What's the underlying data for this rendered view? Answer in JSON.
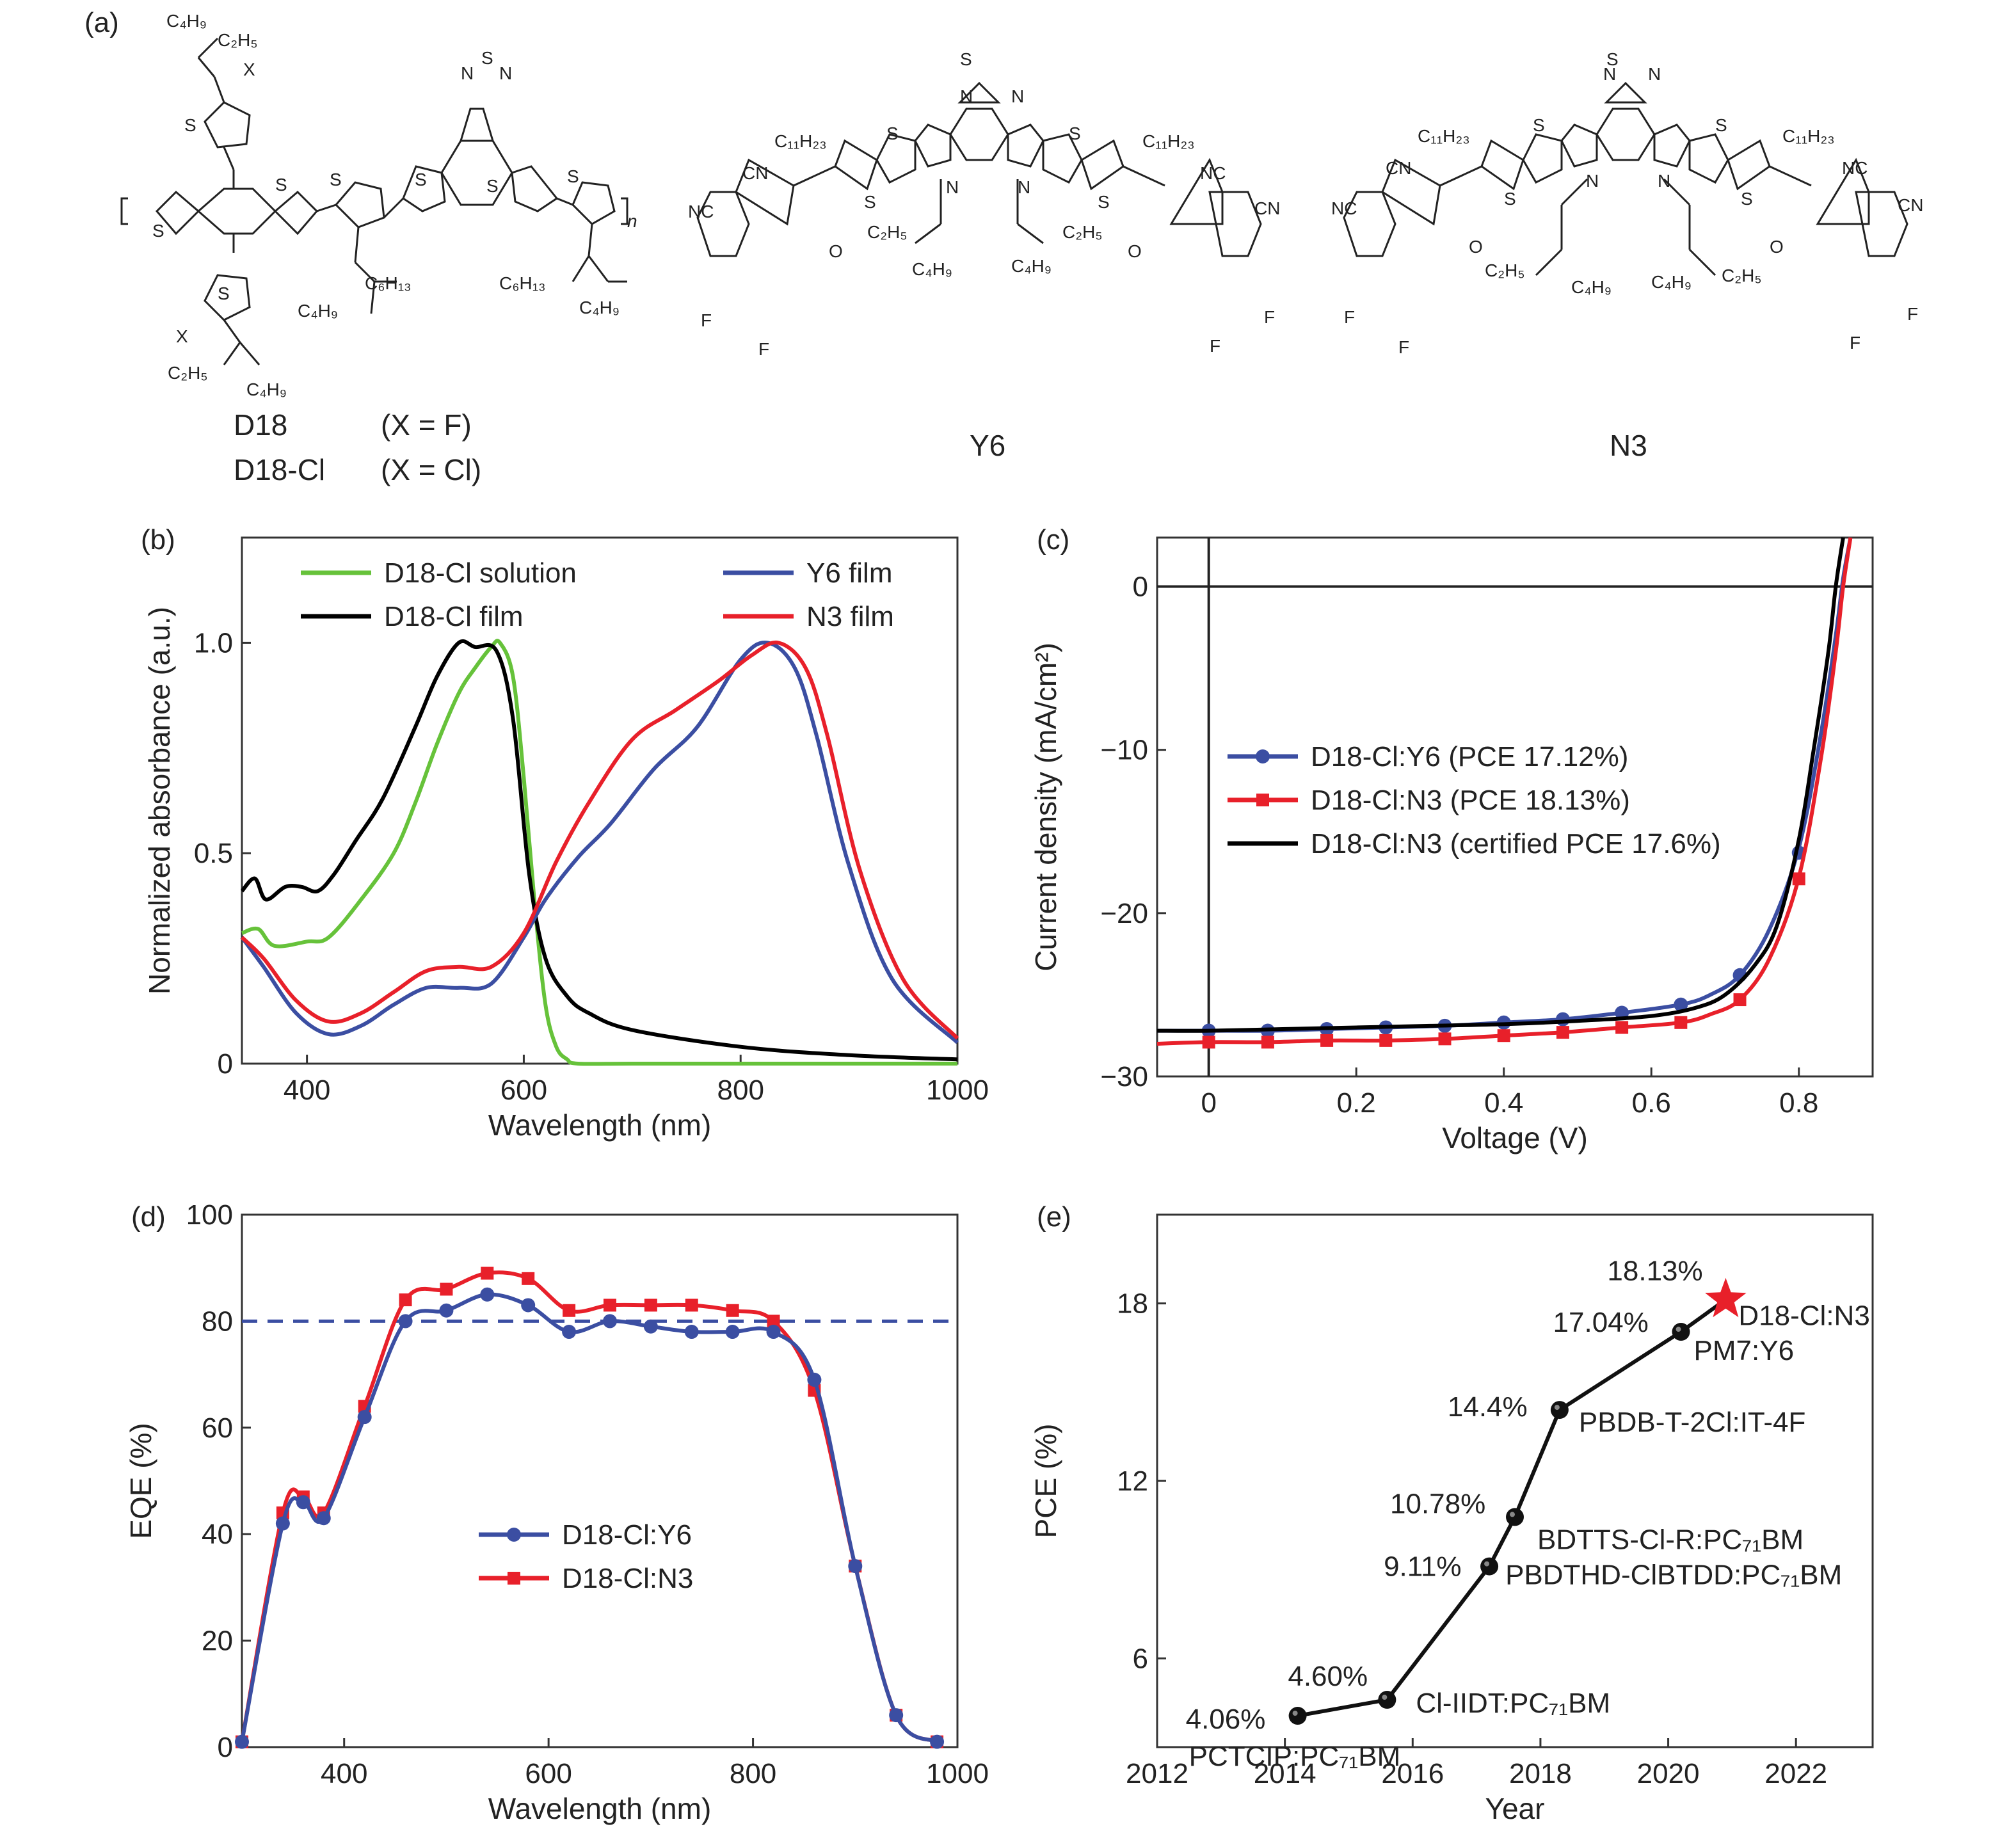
{
  "colors": {
    "green": "#66c23a",
    "black": "#000000",
    "blue": "#3b4ea2",
    "red": "#e8202a",
    "dashed": "#3b4ea2",
    "highlight": "#d8285a"
  },
  "panel_a": {
    "label": "(a)",
    "molecules": [
      {
        "name": "D18",
        "note": "(X = F)"
      },
      {
        "name": "D18-Cl",
        "note": "(X = Cl)"
      },
      {
        "name": "Y6"
      },
      {
        "name": "N3"
      }
    ],
    "atoms": {
      "S": "S",
      "N": "N",
      "F": "F",
      "X": "X",
      "O": "O",
      "NC": "NC",
      "CN": "CN",
      "C4H9": "C₄H₉",
      "C2H5": "C₂H₅",
      "C6H13": "C₆H₁₃",
      "C11H23": "C₁₁H₂₃",
      "n": "n"
    }
  },
  "chart_data": [
    {
      "panel": "(b)",
      "type": "line",
      "xlabel": "Wavelength (nm)",
      "ylabel": "Normalized absorbance (a.u.)",
      "xlim": [
        340,
        1000
      ],
      "ylim": [
        0,
        1.25
      ],
      "xticks": [
        400,
        600,
        800,
        1000
      ],
      "yticks": [
        0,
        0.5,
        1.0
      ],
      "ytick_labels": [
        "0",
        "0.5",
        "1.0"
      ],
      "legend": "top",
      "series": [
        {
          "name": "D18-Cl solution",
          "color": "#66c23a",
          "x": [
            340,
            355,
            370,
            400,
            420,
            450,
            480,
            500,
            520,
            540,
            555,
            570,
            578,
            590,
            600,
            610,
            620,
            630,
            640,
            650,
            700,
            800,
            900,
            1000
          ],
          "y": [
            0.31,
            0.32,
            0.28,
            0.29,
            0.3,
            0.39,
            0.5,
            0.62,
            0.76,
            0.88,
            0.94,
            0.99,
            1.0,
            0.92,
            0.68,
            0.38,
            0.14,
            0.04,
            0.01,
            0.0,
            0.0,
            0.0,
            0.0,
            0.0
          ]
        },
        {
          "name": "D18-Cl film",
          "color": "#000000",
          "x": [
            340,
            352,
            362,
            380,
            395,
            410,
            425,
            445,
            470,
            500,
            520,
            540,
            555,
            575,
            590,
            605,
            620,
            640,
            660,
            700,
            800,
            900,
            1000
          ],
          "y": [
            0.41,
            0.44,
            0.39,
            0.42,
            0.42,
            0.41,
            0.45,
            0.53,
            0.63,
            0.8,
            0.92,
            1.0,
            0.99,
            0.98,
            0.82,
            0.45,
            0.25,
            0.16,
            0.12,
            0.08,
            0.04,
            0.02,
            0.01
          ]
        },
        {
          "name": "Y6 film",
          "color": "#3b4ea2",
          "x": [
            340,
            360,
            390,
            420,
            450,
            480,
            510,
            540,
            570,
            600,
            620,
            650,
            680,
            720,
            760,
            800,
            825,
            850,
            870,
            900,
            940,
            1000
          ],
          "y": [
            0.3,
            0.23,
            0.12,
            0.07,
            0.09,
            0.14,
            0.18,
            0.18,
            0.19,
            0.3,
            0.39,
            0.49,
            0.57,
            0.7,
            0.8,
            0.96,
            1.0,
            0.94,
            0.78,
            0.47,
            0.2,
            0.05
          ]
        },
        {
          "name": "N3 film",
          "color": "#e8202a",
          "x": [
            340,
            360,
            390,
            420,
            450,
            480,
            510,
            540,
            570,
            600,
            630,
            660,
            700,
            740,
            780,
            810,
            835,
            860,
            880,
            910,
            950,
            1000
          ],
          "y": [
            0.3,
            0.25,
            0.15,
            0.1,
            0.12,
            0.17,
            0.22,
            0.23,
            0.23,
            0.31,
            0.48,
            0.62,
            0.77,
            0.84,
            0.91,
            0.97,
            1.0,
            0.94,
            0.78,
            0.46,
            0.2,
            0.06
          ]
        }
      ]
    },
    {
      "panel": "(c)",
      "type": "line",
      "xlabel": "Voltage (V)",
      "ylabel": "Current density (mA/cm²)",
      "xlim": [
        -0.07,
        0.9
      ],
      "ylim": [
        -30,
        3
      ],
      "xticks": [
        0,
        0.2,
        0.4,
        0.6,
        0.8
      ],
      "xtick_labels": [
        "0",
        "0.2",
        "0.4",
        "0.6",
        "0.8"
      ],
      "yticks": [
        0,
        -10,
        -20,
        -30
      ],
      "ytick_labels": [
        "0",
        "−10",
        "−20",
        "−30"
      ],
      "legend": "middle-left",
      "series": [
        {
          "name": "D18-Cl:Y6 (PCE 17.12%)",
          "color": "#3b4ea2",
          "marker": "circle",
          "x": [
            -0.07,
            0,
            0.08,
            0.16,
            0.24,
            0.32,
            0.4,
            0.48,
            0.56,
            0.64,
            0.68,
            0.72,
            0.76,
            0.8,
            0.83,
            0.85,
            0.86,
            0.87
          ],
          "y": [
            -27.2,
            -27.2,
            -27.2,
            -27.1,
            -27.0,
            -26.9,
            -26.7,
            -26.5,
            -26.1,
            -25.6,
            -25.0,
            -23.8,
            -21.0,
            -16.0,
            -9.0,
            -3.0,
            0.5,
            3.0
          ],
          "marker_x": [
            0,
            0.08,
            0.16,
            0.24,
            0.32,
            0.4,
            0.48,
            0.56,
            0.64,
            0.72,
            0.8
          ],
          "marker_y": [
            -27.2,
            -27.2,
            -27.1,
            -27.0,
            -26.9,
            -26.7,
            -26.5,
            -26.1,
            -25.6,
            -23.8,
            -16.3
          ]
        },
        {
          "name": "D18-Cl:N3 (PCE 18.13%)",
          "color": "#e8202a",
          "marker": "square",
          "x": [
            -0.07,
            0,
            0.08,
            0.16,
            0.24,
            0.32,
            0.4,
            0.48,
            0.56,
            0.64,
            0.68,
            0.72,
            0.76,
            0.8,
            0.83,
            0.85,
            0.86,
            0.87
          ],
          "y": [
            -28.0,
            -27.9,
            -27.9,
            -27.8,
            -27.8,
            -27.7,
            -27.5,
            -27.3,
            -27.0,
            -26.7,
            -26.2,
            -25.3,
            -22.8,
            -17.8,
            -10.5,
            -4.0,
            0.0,
            3.0
          ],
          "marker_x": [
            0,
            0.08,
            0.16,
            0.24,
            0.32,
            0.4,
            0.48,
            0.56,
            0.64,
            0.72,
            0.8
          ],
          "marker_y": [
            -27.9,
            -27.9,
            -27.8,
            -27.8,
            -27.7,
            -27.5,
            -27.3,
            -27.0,
            -26.7,
            -25.3,
            -17.9
          ]
        },
        {
          "name": "D18-Cl:N3 (certified PCE 17.6%)",
          "color": "#000000",
          "marker": "none",
          "x": [
            -0.07,
            0,
            0.1,
            0.2,
            0.3,
            0.4,
            0.5,
            0.6,
            0.66,
            0.7,
            0.74,
            0.77,
            0.8,
            0.82,
            0.84,
            0.85,
            0.86
          ],
          "y": [
            -27.2,
            -27.2,
            -27.1,
            -27.0,
            -26.9,
            -26.8,
            -26.6,
            -26.3,
            -25.8,
            -25.0,
            -23.2,
            -20.8,
            -15.5,
            -10.0,
            -4.0,
            0.0,
            3.0
          ]
        }
      ]
    },
    {
      "panel": "(d)",
      "type": "line",
      "xlabel": "Wavelength (nm)",
      "ylabel": "EQE (%)",
      "xlim": [
        300,
        1000
      ],
      "ylim": [
        0,
        100
      ],
      "xticks": [
        400,
        600,
        800,
        1000
      ],
      "yticks": [
        0,
        20,
        40,
        60,
        80,
        100
      ],
      "reference_line": 80,
      "legend": "bottom-left",
      "series": [
        {
          "name": "D18-Cl:Y6",
          "color": "#3b4ea2",
          "marker": "circle",
          "x": [
            300,
            340,
            360,
            380,
            420,
            460,
            500,
            540,
            580,
            620,
            660,
            700,
            740,
            780,
            820,
            860,
            900,
            940,
            980
          ],
          "y": [
            1,
            42,
            46,
            43,
            62,
            80,
            82,
            85,
            83,
            78,
            80,
            79,
            78,
            78,
            78,
            69,
            34,
            6,
            1
          ]
        },
        {
          "name": "D18-Cl:N3",
          "color": "#e8202a",
          "marker": "square",
          "x": [
            300,
            340,
            360,
            380,
            420,
            460,
            500,
            540,
            580,
            620,
            660,
            700,
            740,
            780,
            820,
            860,
            900,
            940,
            980
          ],
          "y": [
            1,
            44,
            47,
            44,
            64,
            84,
            86,
            89,
            88,
            82,
            83,
            83,
            83,
            82,
            80,
            67,
            34,
            6,
            1
          ]
        }
      ]
    },
    {
      "panel": "(e)",
      "type": "scatter",
      "xlabel": "Year",
      "ylabel": "PCE (%)",
      "xlim": [
        2012,
        2023.2
      ],
      "ylim": [
        3,
        21
      ],
      "xticks": [
        2012,
        2014,
        2016,
        2018,
        2020,
        2022
      ],
      "yticks": [
        6,
        12,
        18
      ],
      "points": [
        {
          "x": 2014.2,
          "y": 4.06,
          "value_label": "4.06%",
          "system": "PCTCIP:PC₇₁BM"
        },
        {
          "x": 2015.6,
          "y": 4.6,
          "value_label": "4.60%",
          "system": "Cl-IIDT:PC₇₁BM"
        },
        {
          "x": 2017.2,
          "y": 9.11,
          "value_label": "9.11%",
          "system": "PBDTHD-ClBTDD:PC₇₁BM"
        },
        {
          "x": 2017.6,
          "y": 10.78,
          "value_label": "10.78%",
          "system": "BDTTS-Cl-R:PC₇₁BM"
        },
        {
          "x": 2018.3,
          "y": 14.4,
          "value_label": "14.4%",
          "system": "PBDB-T-2Cl:IT-4F"
        },
        {
          "x": 2020.2,
          "y": 17.04,
          "value_label": "17.04%",
          "system": "PM7:Y6"
        },
        {
          "x": 2020.9,
          "y": 18.13,
          "value_label": "18.13%",
          "system": "D18-Cl:N3",
          "highlight": true
        }
      ]
    }
  ]
}
